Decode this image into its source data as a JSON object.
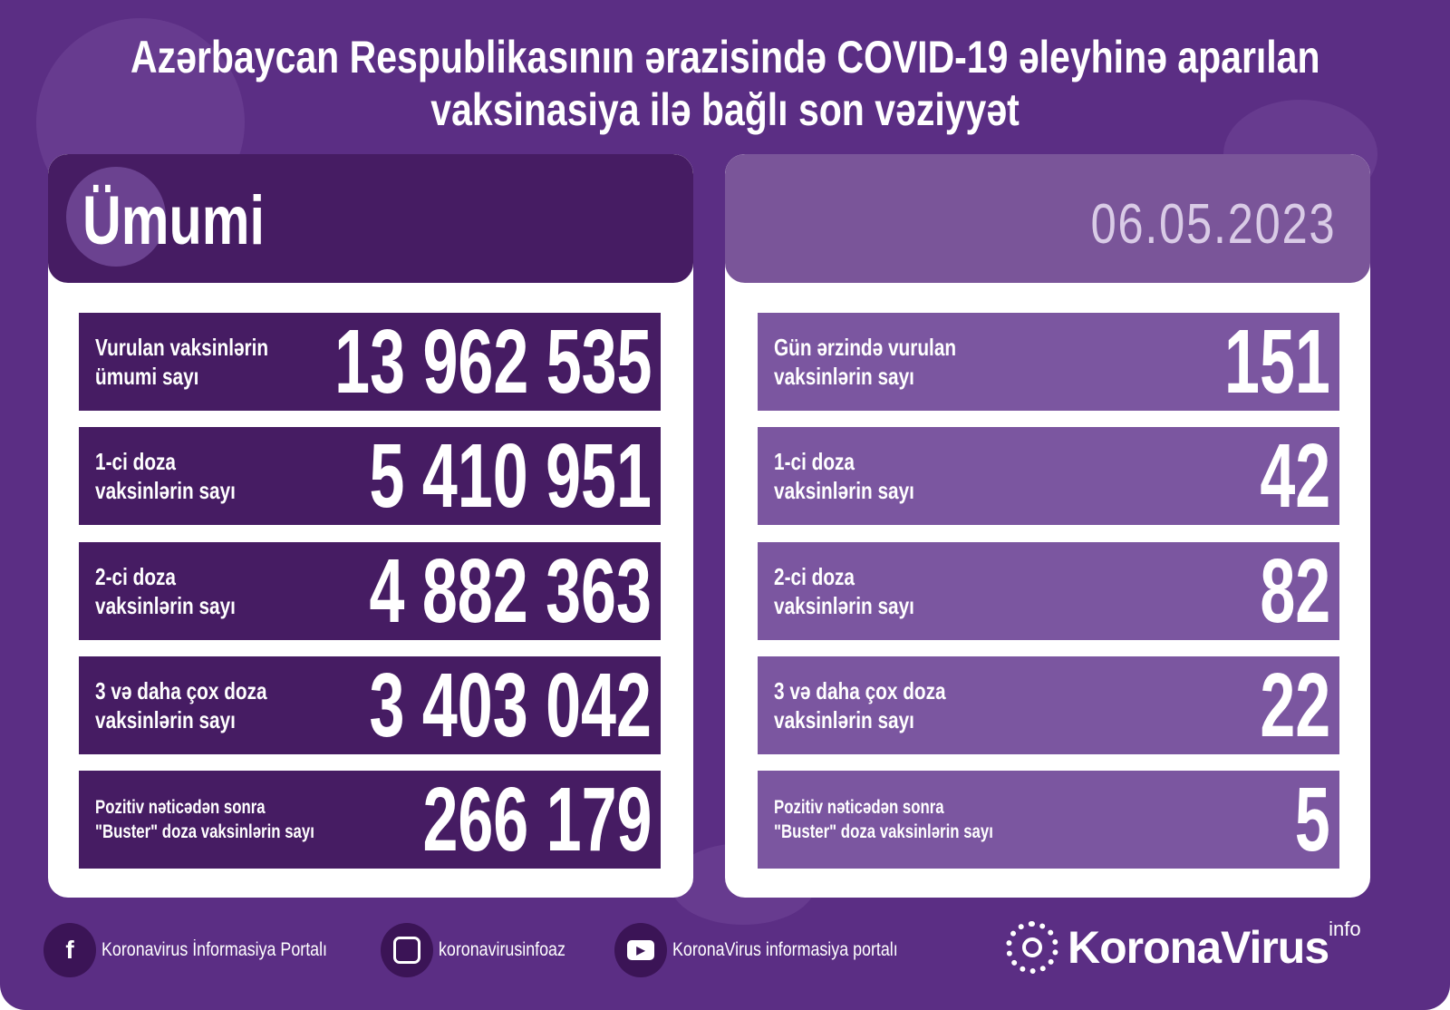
{
  "title": {
    "line1": "Azərbaycan Respublikasının ərazisində COVID-19 əleyhinə aparılan",
    "line2": "vaksinasiya ilə bağlı son vəziyyət"
  },
  "left": {
    "heading": "Ümumi",
    "rows": [
      {
        "label1": "Vurulan vaksinlərin",
        "label2": "ümumi sayı",
        "value": "13 962 535"
      },
      {
        "label1": "1-ci doza",
        "label2": "vaksinlərin sayı",
        "value": "5 410 951"
      },
      {
        "label1": "2-ci doza",
        "label2": "vaksinlərin sayı",
        "value": "4 882 363"
      },
      {
        "label1": "3 və daha çox doza",
        "label2": "vaksinlərin sayı",
        "value": "3 403 042"
      },
      {
        "label1": "Pozitiv nəticədən sonra",
        "label2": "\"Buster\" doza vaksinlərin sayı",
        "value": "266 179"
      }
    ]
  },
  "right": {
    "date": "06.05.2023",
    "rows": [
      {
        "label1": "Gün ərzində vurulan",
        "label2": "vaksinlərin sayı",
        "value": "151"
      },
      {
        "label1": "1-ci doza",
        "label2": "vaksinlərin sayı",
        "value": "42"
      },
      {
        "label1": "2-ci doza",
        "label2": "vaksinlərin sayı",
        "value": "82"
      },
      {
        "label1": "3 və daha çox doza",
        "label2": "vaksinlərin sayı",
        "value": "22"
      },
      {
        "label1": "Pozitiv nəticədən sonra",
        "label2": "\"Buster\" doza vaksinlərin sayı",
        "value": "5"
      }
    ]
  },
  "footer": {
    "facebook": "Koronavirus İnformasiya Portalı",
    "instagram": "koronavirusinfoaz",
    "youtube": "KoronaVirus informasiya portalı",
    "brand": "KoronaVirus",
    "brand_sup": "info"
  },
  "colors": {
    "background": "#5b2e84",
    "dark_panel": "#461c63",
    "light_panel": "#7b56a0"
  }
}
